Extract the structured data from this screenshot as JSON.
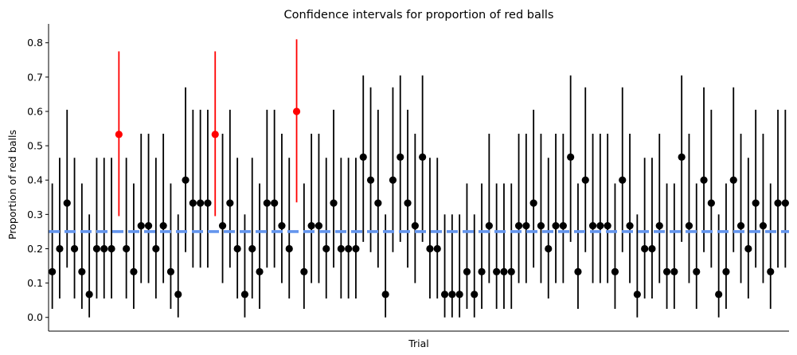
{
  "chart_data": {
    "type": "scatter",
    "title": "Confidence intervals for proportion of red balls",
    "xlabel": "Trial",
    "ylabel": "Proportion of red balls",
    "ylim": [
      -0.04,
      0.855
    ],
    "xlim": [
      0.5,
      100.5
    ],
    "yticks": [
      "0.0",
      "0.1",
      "0.2",
      "0.3",
      "0.4",
      "0.5",
      "0.6",
      "0.7",
      "0.8"
    ],
    "grid": false,
    "reference_line": {
      "y": 0.25,
      "color": "#6495ed",
      "style": "dashed"
    },
    "colors": {
      "inside": "#000000",
      "outside": "#ff0000"
    },
    "point_estimates": [
      0.133,
      0.2,
      0.333,
      0.2,
      0.133,
      0.067,
      0.2,
      0.2,
      0.2,
      0.533,
      0.2,
      0.133,
      0.267,
      0.267,
      0.2,
      0.267,
      0.133,
      0.067,
      0.4,
      0.333,
      0.333,
      0.333,
      0.533,
      0.267,
      0.333,
      0.2,
      0.067,
      0.2,
      0.133,
      0.333,
      0.333,
      0.267,
      0.2,
      0.6,
      0.133,
      0.267,
      0.267,
      0.2,
      0.333,
      0.2,
      0.2,
      0.2,
      0.467,
      0.4,
      0.333,
      0.067,
      0.4,
      0.467,
      0.333,
      0.267,
      0.467,
      0.2,
      0.2,
      0.067,
      0.067,
      0.067,
      0.133,
      0.067,
      0.133,
      0.267,
      0.133,
      0.133,
      0.133,
      0.267,
      0.267,
      0.333,
      0.267,
      0.2,
      0.267,
      0.267,
      0.467,
      0.133,
      0.4,
      0.267,
      0.267,
      0.267,
      0.133,
      0.4,
      0.267,
      0.067,
      0.2,
      0.2,
      0.267,
      0.133,
      0.133,
      0.467,
      0.267,
      0.133,
      0.4,
      0.333,
      0.067,
      0.133,
      0.4,
      0.267,
      0.2,
      0.333,
      0.267,
      0.133,
      0.333,
      0.333
    ],
    "intervals": {
      "0.067": [
        0.0,
        0.3
      ],
      "0.133": [
        0.025,
        0.39
      ],
      "0.2": [
        0.055,
        0.465
      ],
      "0.267": [
        0.1,
        0.535
      ],
      "0.333": [
        0.145,
        0.605
      ],
      "0.4": [
        0.19,
        0.67
      ],
      "0.467": [
        0.22,
        0.705
      ],
      "0.533": [
        0.295,
        0.775
      ],
      "0.6": [
        0.335,
        0.81
      ]
    }
  }
}
